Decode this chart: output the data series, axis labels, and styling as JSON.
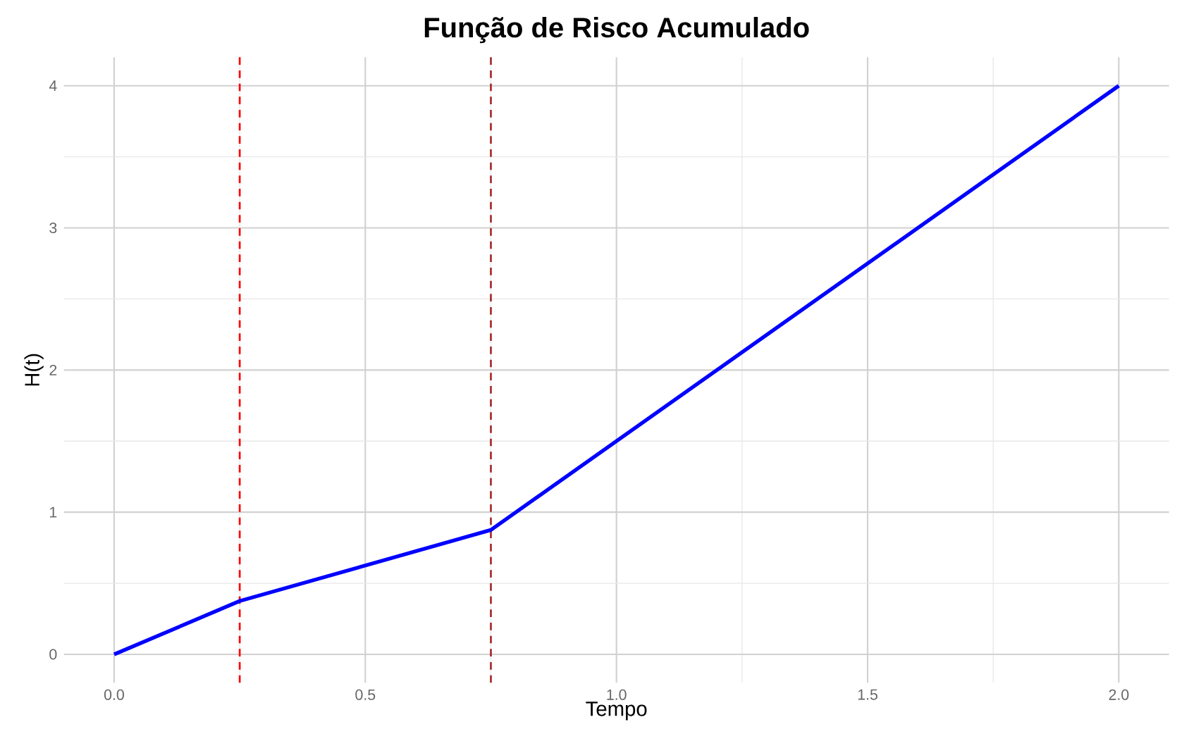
{
  "chart_data": {
    "type": "line",
    "title": "Função de Risco Acumulado",
    "xlabel": "Tempo",
    "ylabel": "H(t)",
    "x": [
      0,
      0.25,
      0.75,
      2.0
    ],
    "series": [
      {
        "color": "#0000ff",
        "values": [
          0,
          0.375,
          0.875,
          4.0
        ]
      }
    ],
    "xlim": [
      -0.1,
      2.1
    ],
    "ylim": [
      -0.2,
      4.2
    ],
    "xticks": [
      {
        "value": 0,
        "label": "0.0"
      },
      {
        "value": 0.5,
        "label": "0.5"
      },
      {
        "value": 1,
        "label": "1.0"
      },
      {
        "value": 1.5,
        "label": "1.5"
      },
      {
        "value": 2,
        "label": "2.0"
      }
    ],
    "yticks": [
      0,
      1,
      2,
      3,
      4
    ],
    "grid": true,
    "ref_lines": [
      {
        "axis": "x",
        "value": 0.25,
        "color": "#ff0000",
        "line_style": "dashed"
      },
      {
        "axis": "x",
        "value": 0.75,
        "color": "#a52a2a",
        "line_style": "dashed"
      }
    ]
  }
}
